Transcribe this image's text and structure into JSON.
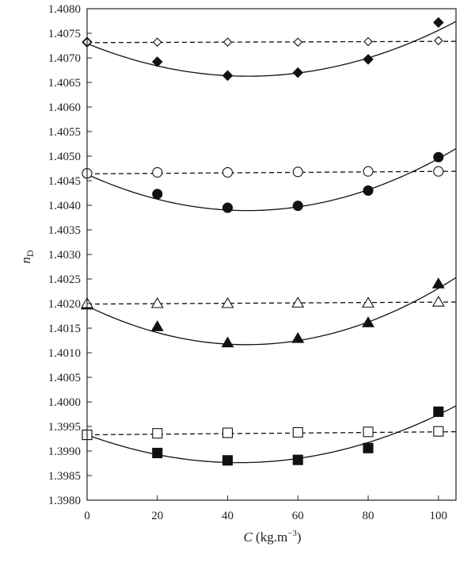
{
  "chart_data": {
    "type": "scatter",
    "xlabel": "C (kg.m−3)",
    "xlabel_main": "C",
    "xlabel_unit_base": " (kg.m",
    "xlabel_unit_exp": "−3",
    "xlabel_unit_close": ")",
    "ylabel": "nD",
    "ylabel_main": "n",
    "ylabel_sub": "D",
    "xlim": [
      0,
      105
    ],
    "ylim": [
      1.398,
      1.408
    ],
    "x_ticks": [
      "0",
      "20",
      "40",
      "60",
      "80",
      "100"
    ],
    "x_tick_values": [
      0,
      20,
      40,
      60,
      80,
      100
    ],
    "y_ticks": [
      "1.3980",
      "1.3985",
      "1.3990",
      "1.3995",
      "1.4000",
      "1.4005",
      "1.4010",
      "1.4015",
      "1.4020",
      "1.4025",
      "1.4030",
      "1.4035",
      "1.4040",
      "1.4045",
      "1.4050",
      "1.4055",
      "1.4060",
      "1.4065",
      "1.4070",
      "1.4075",
      "1.4080"
    ],
    "y_tick_values": [
      1.398,
      1.3985,
      1.399,
      1.3995,
      1.4,
      1.4005,
      1.401,
      1.4015,
      1.402,
      1.4025,
      1.403,
      1.4035,
      1.404,
      1.4045,
      1.405,
      1.4055,
      1.406,
      1.4065,
      1.407,
      1.4075,
      1.408
    ],
    "grid": false,
    "legend": "none",
    "series": [
      {
        "marker": "diamond",
        "filled": true,
        "line": "solid",
        "x": [
          0,
          20,
          40,
          60,
          80,
          100
        ],
        "y": [
          1.40732,
          1.40692,
          1.40664,
          1.4067,
          1.40697,
          1.40772
        ],
        "fit": [
          1.40729,
          -2.9e-05,
          3.17e-07
        ]
      },
      {
        "marker": "diamond",
        "filled": false,
        "line": "dashed",
        "x": [
          0,
          20,
          40,
          60,
          80,
          100
        ],
        "y": [
          1.40732,
          1.40732,
          1.40732,
          1.40732,
          1.40733,
          1.40735
        ],
        "fit": [
          1.40731,
          2.5e-07,
          0
        ]
      },
      {
        "marker": "circle",
        "filled": true,
        "line": "solid",
        "x": [
          0,
          20,
          40,
          60,
          80,
          100
        ],
        "y": [
          1.40465,
          1.40423,
          1.40395,
          1.40399,
          1.4043,
          1.40498
        ],
        "fit": [
          1.40463,
          -3.24e-05,
          3.56e-07
        ]
      },
      {
        "marker": "circle",
        "filled": false,
        "line": "dashed",
        "x": [
          0,
          20,
          40,
          60,
          80,
          100
        ],
        "y": [
          1.40465,
          1.40467,
          1.40467,
          1.40468,
          1.40469,
          1.40469
        ],
        "fit": [
          1.40464,
          5e-07,
          0
        ]
      },
      {
        "marker": "triangle",
        "filled": true,
        "line": "solid",
        "x": [
          0,
          20,
          40,
          60,
          80,
          100
        ],
        "y": [
          1.40197,
          1.40153,
          1.4012,
          1.40129,
          1.40161,
          1.4024
        ],
        "fit": [
          1.40195,
          -3.47e-05,
          3.83e-07
        ]
      },
      {
        "marker": "triangle",
        "filled": false,
        "line": "dashed",
        "x": [
          0,
          20,
          40,
          60,
          80,
          100
        ],
        "y": [
          1.402,
          1.402,
          1.402,
          1.40201,
          1.40201,
          1.40203
        ],
        "fit": [
          1.40199,
          4e-07,
          0
        ]
      },
      {
        "marker": "square",
        "filled": true,
        "line": "solid",
        "x": [
          0,
          20,
          40,
          60,
          80,
          100
        ],
        "y": [
          1.39933,
          1.39896,
          1.39881,
          1.39882,
          1.39906,
          1.3998
        ],
        "fit": [
          1.39933,
          -2.62e-05,
          3.03e-07
        ]
      },
      {
        "marker": "square",
        "filled": false,
        "line": "dashed",
        "x": [
          0,
          20,
          40,
          60,
          80,
          100
        ],
        "y": [
          1.39933,
          1.39936,
          1.39937,
          1.39938,
          1.39939,
          1.3994
        ],
        "fit": [
          1.39933,
          6e-07,
          0
        ]
      }
    ]
  }
}
